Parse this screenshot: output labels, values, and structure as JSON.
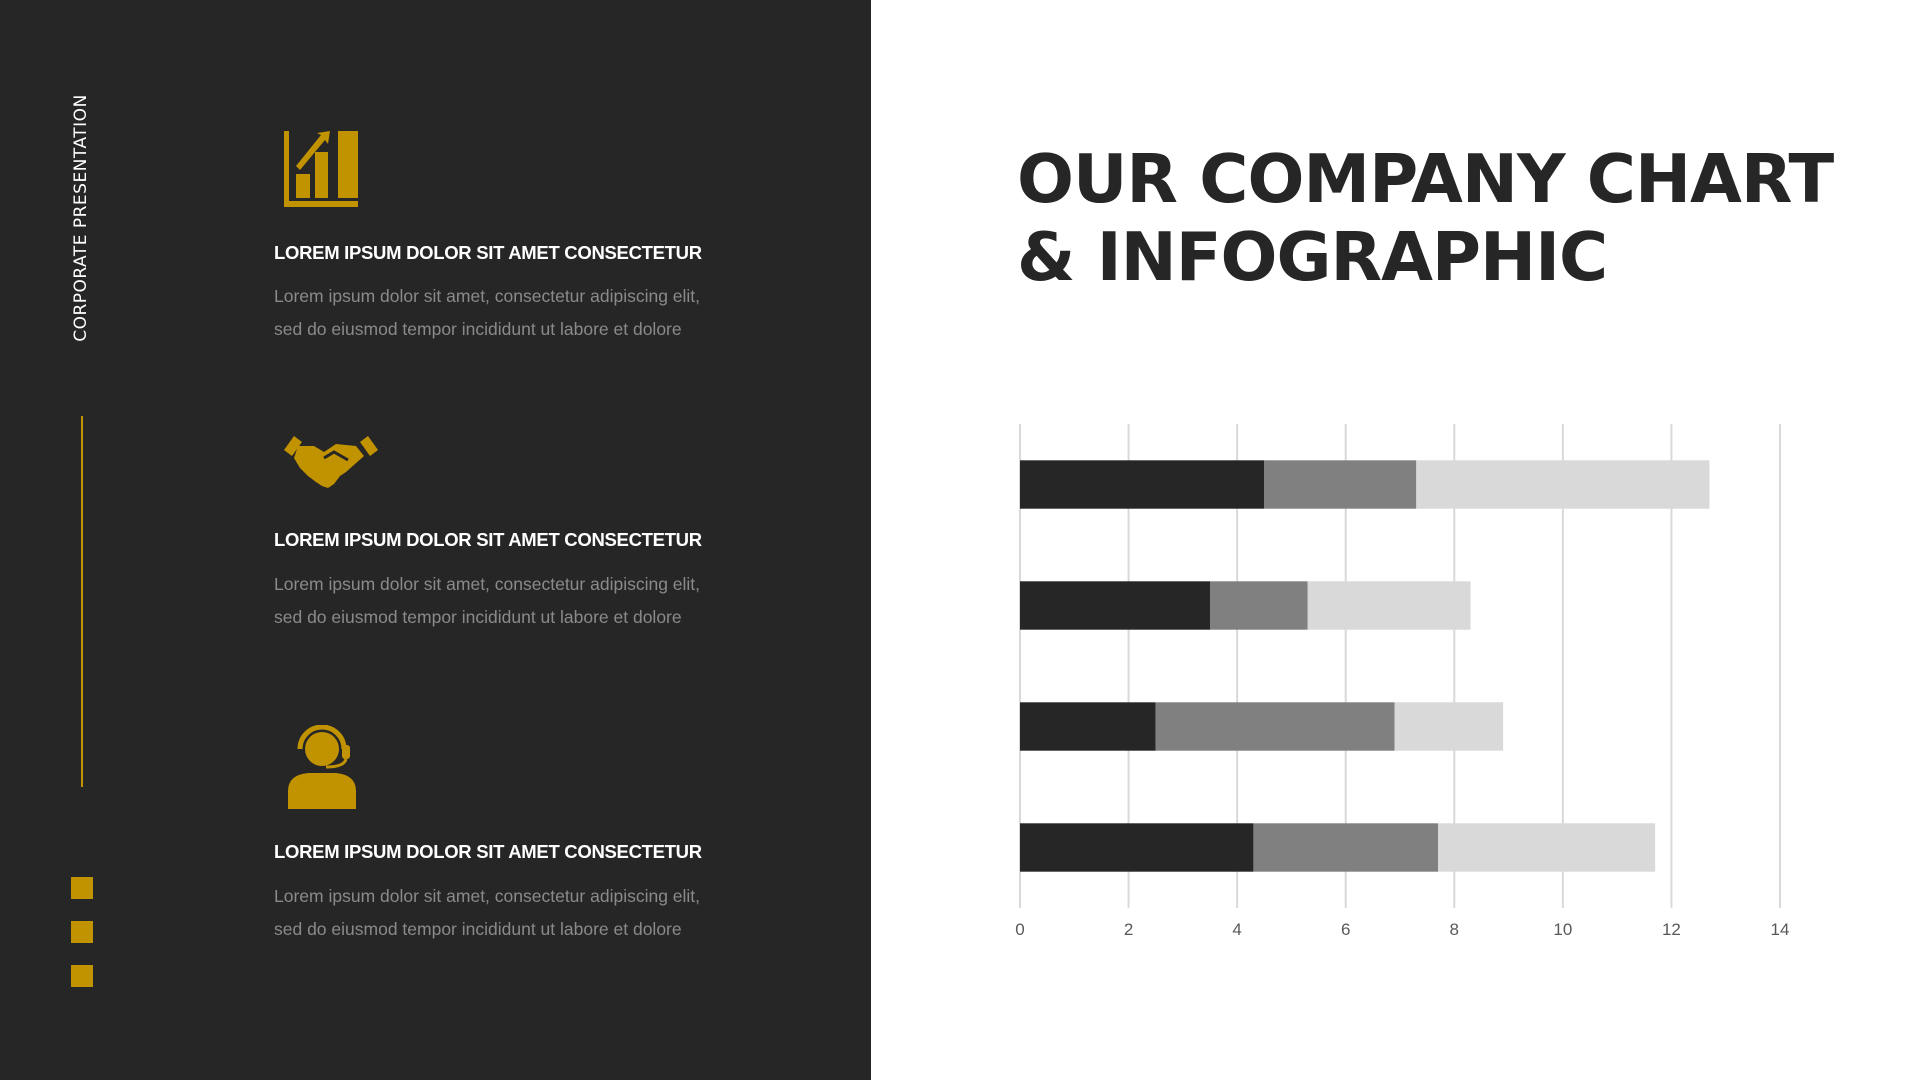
{
  "sidebar": {
    "vertical_label": "CORPORATE PRESENTATION",
    "accent": "#c29300"
  },
  "features": [
    {
      "icon": "bar-chart-growth-icon",
      "heading": "LOREM IPSUM DOLOR SIT AMET CONSECTETUR",
      "line1": "Lorem ipsum dolor sit amet, consectetur adipiscing elit,",
      "line2": "sed do eiusmod tempor incididunt ut labore et dolore"
    },
    {
      "icon": "handshake-icon",
      "heading": "LOREM IPSUM DOLOR SIT AMET CONSECTETUR",
      "line1": "Lorem ipsum dolor sit amet, consectetur adipiscing elit,",
      "line2": "sed do eiusmod tempor incididunt ut labore et dolore"
    },
    {
      "icon": "support-agent-headset-icon",
      "heading": "LOREM IPSUM DOLOR SIT AMET CONSECTETUR",
      "line1": "Lorem ipsum dolor sit amet, consectetur adipiscing elit,",
      "line2": "sed do eiusmod tempor incididunt ut labore et dolore"
    }
  ],
  "title": {
    "line1": "OUR COMPANY CHART",
    "line2": "& INFOGRAPHIC"
  },
  "chart_data": {
    "type": "bar",
    "orientation": "horizontal",
    "stacked": true,
    "categories": [
      "",
      "",
      "",
      ""
    ],
    "series": [
      {
        "values": [
          4.5,
          3.5,
          2.5,
          4.3
        ],
        "color": "#262626"
      },
      {
        "values": [
          2.8,
          1.8,
          4.4,
          3.4
        ],
        "color": "#808080"
      },
      {
        "values": [
          5.4,
          3.0,
          2.0,
          4.0
        ],
        "color": "#d9d9d9"
      }
    ],
    "xlim": [
      0,
      14
    ],
    "xticks": [
      "0",
      "2",
      "4",
      "6",
      "8",
      "10",
      "12",
      "14"
    ],
    "grid": true,
    "legend": "none"
  }
}
